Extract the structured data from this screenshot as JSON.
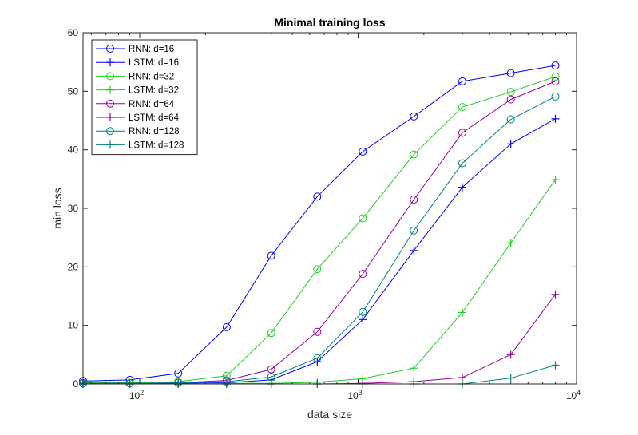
{
  "chart_data": {
    "type": "line",
    "title": "Minimal training loss",
    "xlabel": "data size",
    "ylabel": "min loss",
    "xscale": "log",
    "xlim": [
      55,
      10000
    ],
    "ylim": [
      0,
      60
    ],
    "xticks": [
      {
        "value": 100,
        "base": "10",
        "exp": "2"
      },
      {
        "value": 1000,
        "base": "10",
        "exp": "3"
      },
      {
        "value": 10000,
        "base": "10",
        "exp": "4"
      }
    ],
    "yticks": [
      0,
      10,
      20,
      30,
      40,
      50,
      60
    ],
    "legend_position": "top-left",
    "x": [
      55,
      90,
      150,
      250,
      400,
      650,
      1050,
      1800,
      3000,
      5000,
      8000
    ],
    "series": [
      {
        "name": "RNN: d=16",
        "marker": "circle",
        "color": "#0000ff",
        "values": [
          0.5,
          0.7,
          1.8,
          9.7,
          21.9,
          32.0,
          39.7,
          45.7,
          51.7,
          53.1,
          54.4
        ]
      },
      {
        "name": "LSTM: d=16",
        "marker": "plus",
        "color": "#0000ff",
        "values": [
          0.1,
          0.1,
          0.1,
          0.2,
          0.7,
          3.8,
          11.0,
          22.8,
          33.6,
          41.0,
          45.3
        ]
      },
      {
        "name": "RNN: d=32",
        "marker": "circle",
        "color": "#22cc22",
        "values": [
          0.2,
          0.2,
          0.4,
          1.4,
          8.7,
          19.6,
          28.3,
          39.2,
          47.3,
          49.9,
          52.5
        ]
      },
      {
        "name": "LSTM: d=32",
        "marker": "plus",
        "color": "#22cc22",
        "values": [
          0.0,
          0.0,
          0.0,
          0.1,
          0.1,
          0.3,
          0.9,
          2.7,
          12.2,
          24.1,
          34.9
        ]
      },
      {
        "name": "RNN: d=64",
        "marker": "circle",
        "color": "#990099",
        "values": [
          0.1,
          0.1,
          0.2,
          0.6,
          2.5,
          8.9,
          18.8,
          31.5,
          42.9,
          48.6,
          51.7
        ]
      },
      {
        "name": "LSTM: d=64",
        "marker": "plus",
        "color": "#990099",
        "values": [
          0.0,
          0.0,
          0.0,
          0.0,
          0.0,
          0.0,
          0.1,
          0.4,
          1.1,
          5.0,
          15.3
        ]
      },
      {
        "name": "RNN: d=128",
        "marker": "circle",
        "color": "#008080",
        "values": [
          0.1,
          0.1,
          0.2,
          0.4,
          1.2,
          4.4,
          12.3,
          26.2,
          37.7,
          45.2,
          49.1
        ]
      },
      {
        "name": "LSTM: d=128",
        "marker": "plus",
        "color": "#008080",
        "values": [
          0.0,
          0.0,
          0.0,
          0.0,
          0.0,
          0.0,
          0.0,
          0.0,
          0.0,
          1.0,
          3.2
        ]
      }
    ]
  }
}
